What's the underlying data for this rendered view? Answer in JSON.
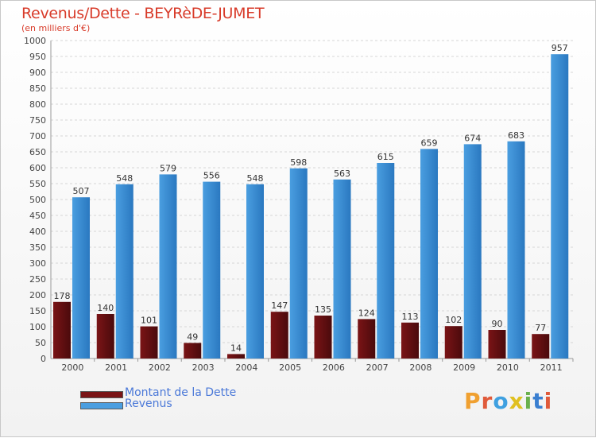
{
  "title": "Revenus/Dette - BEYRèDE-JUMET",
  "subtitle": "(en milliers d'€)",
  "colors": {
    "dette": "#7a1416",
    "revenus": "#4a9ee0",
    "title": "#d83b2a",
    "legend_text": "#4a78d8"
  },
  "chart_data": {
    "type": "bar",
    "categories": [
      "2000",
      "2001",
      "2002",
      "2003",
      "2004",
      "2005",
      "2006",
      "2007",
      "2008",
      "2009",
      "2010",
      "2011"
    ],
    "series": [
      {
        "name": "Montant de la Dette",
        "values": [
          178,
          140,
          101,
          49,
          14,
          147,
          135,
          124,
          113,
          102,
          90,
          77
        ]
      },
      {
        "name": "Revenus",
        "values": [
          507,
          548,
          579,
          556,
          548,
          598,
          563,
          615,
          659,
          674,
          683,
          957
        ]
      }
    ],
    "ylim": [
      0,
      1000
    ],
    "ytick_step": 50,
    "yticks": [
      "0",
      "50",
      "100",
      "150",
      "200",
      "250",
      "300",
      "350",
      "400",
      "450",
      "500",
      "550",
      "600",
      "650",
      "700",
      "750",
      "800",
      "850",
      "900",
      "950",
      "1000"
    ],
    "grid": true,
    "legend": "bottom-left"
  },
  "legend": {
    "items": [
      {
        "label": "Montant de la Dette",
        "color": "#7a1416"
      },
      {
        "label": "Revenus",
        "color": "#4a9ee0"
      }
    ]
  },
  "logo": {
    "text": "Proxiti",
    "letter_colors": [
      "#f0a030",
      "#e05a3a",
      "#3fa0e0",
      "#e0c020",
      "#6ab04c",
      "#3a7fd0",
      "#e05a3a"
    ]
  }
}
